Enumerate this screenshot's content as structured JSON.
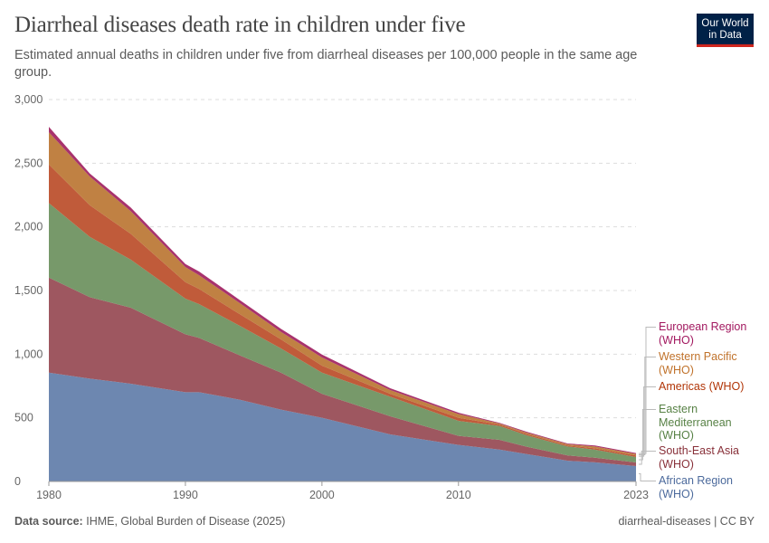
{
  "header": {
    "title": "Diarrheal diseases death rate in children under five",
    "subtitle": "Estimated annual deaths in children under five from diarrheal diseases per 100,000 people in the same age group.",
    "logo": "Our World in Data"
  },
  "footer": {
    "source_label": "Data source:",
    "source": "IHME, Global Burden of Disease (2025)",
    "slug": "diarrheal-diseases | CC BY"
  },
  "chart_data": {
    "type": "area",
    "stacked": true,
    "title": "Diarrheal diseases death rate in children under five",
    "xlabel": "",
    "ylabel": "",
    "xlim": [
      1980,
      2023
    ],
    "ylim": [
      0,
      3000
    ],
    "yticks": [
      "0",
      "500",
      "1,000",
      "1,500",
      "2,000",
      "2,500",
      "3,000"
    ],
    "yticks_values": [
      0,
      500,
      1000,
      1500,
      2000,
      2500,
      3000
    ],
    "xticks": [
      1980,
      1990,
      2000,
      2010,
      2023
    ],
    "grid": "horizontal dashed",
    "legend": "right",
    "x": [
      1980,
      1983,
      1986,
      1990,
      1991,
      1994,
      1997,
      2000,
      2005,
      2010,
      2013,
      2015,
      2018,
      2020,
      2023
    ],
    "series": [
      {
        "name": "African Region (WHO)",
        "color": "#6d87b0",
        "label_color": "#4c6a9c",
        "values": [
          855,
          808,
          768,
          701,
          701,
          642,
          564,
          500,
          370,
          287,
          251,
          215,
          163,
          150,
          121
        ]
      },
      {
        "name": "South-East Asia (WHO)",
        "color": "#9e5760",
        "label_color": "#883039",
        "values": [
          746,
          640,
          597,
          455,
          427,
          348,
          291,
          189,
          142,
          71,
          76,
          58,
          41,
          37,
          28
        ]
      },
      {
        "name": "Eastern Mediterranean (WHO)",
        "color": "#77996a",
        "label_color": "#578145",
        "values": [
          586,
          473,
          378,
          280,
          265,
          232,
          190,
          166,
          154,
          118,
          109,
          90,
          71,
          63,
          43
        ]
      },
      {
        "name": "Americas (WHO)",
        "color": "#c05b3a",
        "label_color": "#b13507",
        "values": [
          303,
          249,
          202,
          130,
          119,
          91,
          71,
          55,
          23,
          24,
          11,
          10,
          8,
          10,
          12
        ]
      },
      {
        "name": "Western Pacific (WHO)",
        "color": "#c08143",
        "label_color": "#c0722b",
        "values": [
          253,
          225,
          178,
          118,
          108,
          87,
          59,
          64,
          29,
          30,
          8,
          10,
          9,
          15,
          12
        ]
      },
      {
        "name": "European Region (WHO)",
        "color": "#a8326d",
        "label_color": "#a2185f",
        "values": [
          43,
          24,
          28,
          24,
          29,
          24,
          24,
          23,
          14,
          10,
          5,
          7,
          6,
          8,
          7
        ]
      }
    ]
  }
}
